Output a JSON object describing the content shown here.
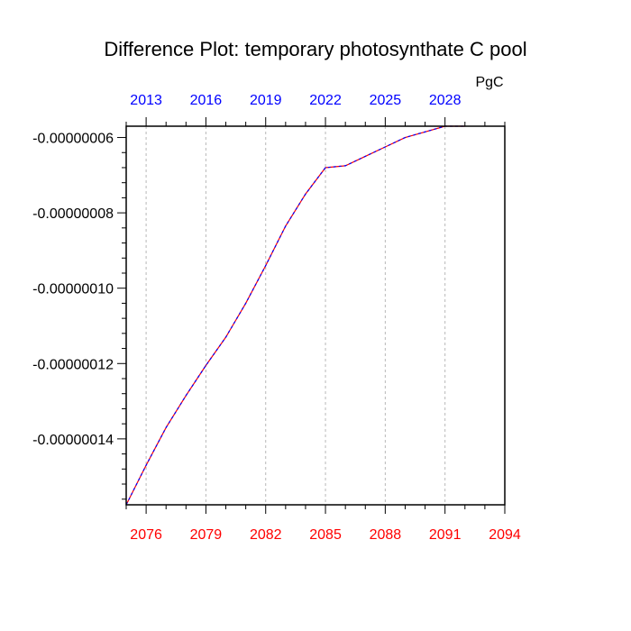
{
  "chart_data": {
    "type": "line",
    "title": "Difference Plot: temporary photosynthate C pool",
    "units_label": "PgC",
    "x_bottom": {
      "range": [
        2075,
        2094
      ],
      "ticks": [
        "2076",
        "2079",
        "2082",
        "2085",
        "2088",
        "2091",
        "2094"
      ],
      "tick_values": [
        2076,
        2079,
        2082,
        2085,
        2088,
        2091,
        2094
      ],
      "color": "#ff0000"
    },
    "x_top": {
      "range": [
        2012,
        2031
      ],
      "ticks": [
        "2013",
        "2016",
        "2019",
        "2022",
        "2025",
        "2028"
      ],
      "tick_values": [
        2013,
        2016,
        2019,
        2022,
        2025,
        2028
      ],
      "color": "#0000ff"
    },
    "y": {
      "range": [
        -1.575e-07,
        -5.7e-08
      ],
      "ticks": [
        "-0.00000006",
        "-0.00000008",
        "-0.00000010",
        "-0.00000012",
        "-0.00000014"
      ],
      "tick_values": [
        -6e-08,
        -8e-08,
        -1e-07,
        -1.2e-07,
        -1.4e-07
      ]
    },
    "grid": "vertical dashed at labeled ticks",
    "series": [
      {
        "line_color": "#ff0000",
        "overlay_color": "#0000ff",
        "x": [
          2075,
          2076,
          2077,
          2078,
          2079,
          2080,
          2081,
          2082,
          2083,
          2084,
          2085,
          2086,
          2087,
          2088,
          2089,
          2090,
          2091,
          2092
        ],
        "values": [
          -1.575e-07,
          -1.47e-07,
          -1.37e-07,
          -1.285e-07,
          -1.205e-07,
          -1.13e-07,
          -1.04e-07,
          -9.4e-08,
          -8.35e-08,
          -7.5e-08,
          -6.8e-08,
          -6.75e-08,
          -6.5e-08,
          -6.25e-08,
          -6e-08,
          -5.85e-08,
          -5.7e-08,
          -5.7e-08
        ]
      }
    ]
  }
}
